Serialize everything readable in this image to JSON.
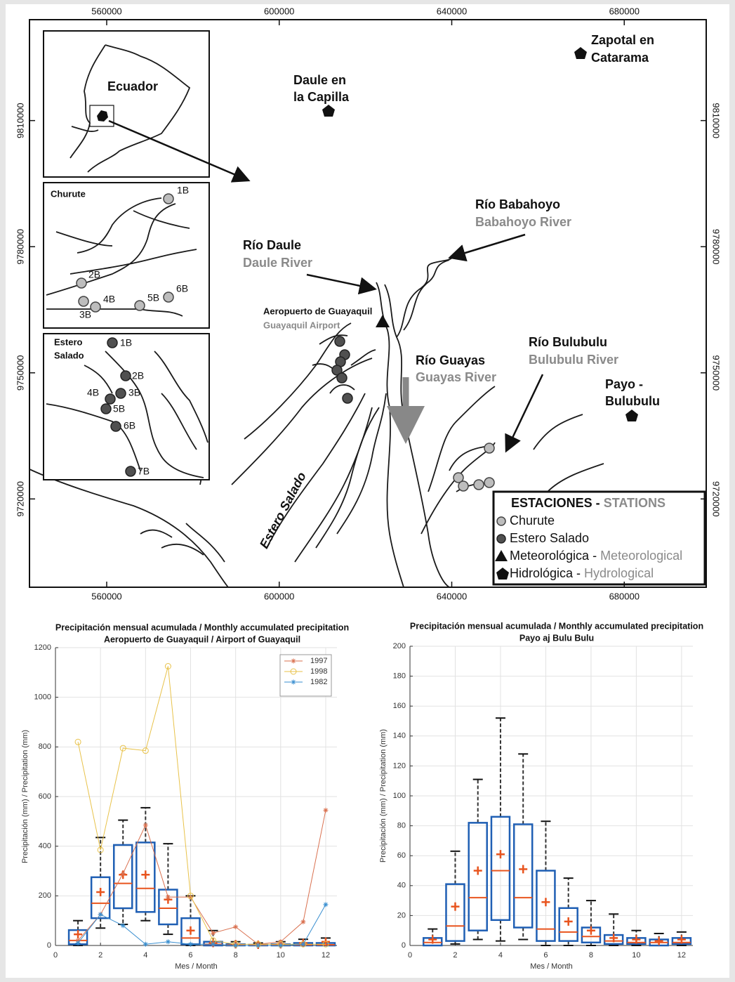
{
  "map": {
    "xlim": [
      542100,
      699000
    ],
    "ylim": [
      9699000,
      9834000
    ],
    "xticks": [
      560000,
      600000,
      640000,
      680000
    ],
    "yticks": [
      9720000,
      9750000,
      9780000,
      9810000
    ],
    "stations": {
      "zapotal": [
        "Zapotal en",
        "Catarama"
      ],
      "daule_capilla": [
        "Daule en",
        "la Capilla"
      ],
      "payo": [
        "Payo -",
        "Bulubulu"
      ],
      "airport": [
        "Aeropuerto de Guayaquil",
        "Guayaquil Airport"
      ]
    },
    "rivers": {
      "babahoyo": [
        "Río Babahoyo",
        "Babahoyo River"
      ],
      "daule": [
        "Río Daule",
        "Daule River"
      ],
      "guayas": [
        "Río Guayas",
        "Guayas River"
      ],
      "bulubulu": [
        "Río Bulubulu",
        "Bulubulu River"
      ],
      "estero": "Estero Salado"
    },
    "insets": {
      "ecuador": "Ecuador",
      "churute": {
        "title": "Churute",
        "sites": [
          "1B",
          "2B",
          "3B",
          "4B",
          "5B",
          "6B"
        ]
      },
      "estero": {
        "title": [
          "Estero",
          "Salado"
        ],
        "sites": [
          "1B",
          "2B",
          "3B",
          "4B",
          "5B",
          "6B",
          "7B"
        ]
      }
    },
    "legend": {
      "title": [
        "ESTACIONES -",
        "STATIONS"
      ],
      "items": [
        [
          "Churute"
        ],
        [
          "Estero Salado"
        ],
        [
          "Meteorológica -",
          "Meteorological"
        ],
        [
          "Hidrológica -",
          "Hydrological"
        ]
      ]
    }
  },
  "chart_data": [
    {
      "type": "box",
      "title": "Precipitación mensual acumulada / Monthly accumulated precipitation",
      "subtitle": "Aeropuerto de Guayaquil / Airport of Guayaquil",
      "xlabel": "Mes / Month",
      "ylabel": "Precipitación (mm) / Precipitation (mm)",
      "x": [
        1,
        2,
        3,
        4,
        5,
        6,
        7,
        8,
        9,
        10,
        11,
        12
      ],
      "min": [
        0,
        70,
        85,
        100,
        45,
        0,
        0,
        0,
        0,
        0,
        0,
        0
      ],
      "q1": [
        5,
        110,
        150,
        135,
        85,
        5,
        0,
        0,
        0,
        0,
        0,
        0
      ],
      "median": [
        20,
        170,
        250,
        230,
        150,
        30,
        5,
        2,
        1,
        2,
        3,
        3
      ],
      "q3": [
        62,
        275,
        405,
        415,
        225,
        110,
        15,
        5,
        3,
        5,
        10,
        10
      ],
      "max": [
        100,
        435,
        505,
        555,
        410,
        200,
        60,
        15,
        10,
        15,
        25,
        30
      ],
      "mean": [
        45,
        215,
        285,
        285,
        185,
        60,
        10,
        5,
        3,
        5,
        10,
        15
      ],
      "box_color": "#1f5fb4",
      "median_color": "#e8541e",
      "series": [
        {
          "name": "1997",
          "color": "#d9704f",
          "marker": "*",
          "values": [
            20,
            125,
            290,
            485,
            195,
            195,
            50,
            75,
            5,
            15,
            95,
            545
          ]
        },
        {
          "name": "1998",
          "color": "#e8c24a",
          "marker": "o",
          "values": [
            820,
            385,
            795,
            785,
            1125,
            200,
            20,
            5,
            5,
            5,
            5,
            5
          ]
        },
        {
          "name": "1982",
          "color": "#3a8fd0",
          "marker": "*",
          "values": [
            10,
            125,
            80,
            5,
            15,
            5,
            5,
            0,
            0,
            0,
            5,
            165
          ]
        }
      ],
      "legend": "upper right",
      "xlim": [
        0,
        12.5
      ],
      "ylim": [
        0,
        1200
      ],
      "xticks": [
        0,
        2,
        4,
        6,
        8,
        10,
        12
      ],
      "yticks": [
        0,
        200,
        400,
        600,
        800,
        1000,
        1200
      ],
      "grid": true
    },
    {
      "type": "box",
      "title": "Precipitación mensual acumulada / Monthly accumulated precipitation",
      "subtitle": "Payo aj Bulu Bulu",
      "xlabel": "Mes / Month",
      "ylabel": "Precipitación (mm) / Precipitation (mm)",
      "x": [
        1,
        2,
        3,
        4,
        5,
        6,
        7,
        8,
        9,
        10,
        11,
        12
      ],
      "min": [
        0,
        1,
        4,
        3,
        4,
        0,
        0,
        0,
        0,
        0,
        0,
        0
      ],
      "q1": [
        0,
        3,
        10,
        17,
        12,
        3,
        3,
        2,
        1,
        1,
        0,
        1
      ],
      "median": [
        2,
        13,
        32,
        50,
        32,
        11,
        9,
        6,
        3,
        2,
        2,
        2
      ],
      "q3": [
        5,
        41,
        82,
        86,
        81,
        50,
        25,
        12,
        7,
        5,
        4,
        5
      ],
      "max": [
        11,
        63,
        111,
        152,
        128,
        83,
        45,
        30,
        21,
        10,
        8,
        9
      ],
      "mean": [
        4,
        26,
        50,
        61,
        51,
        29,
        16,
        10,
        5,
        4,
        3,
        4
      ],
      "box_color": "#1f5fb4",
      "median_color": "#e8541e",
      "xlim": [
        0,
        12.5
      ],
      "ylim": [
        0,
        200
      ],
      "xticks": [
        0,
        2,
        4,
        6,
        8,
        10,
        12
      ],
      "yticks": [
        0,
        20,
        40,
        60,
        80,
        100,
        120,
        140,
        160,
        180,
        200
      ],
      "grid": true
    }
  ]
}
